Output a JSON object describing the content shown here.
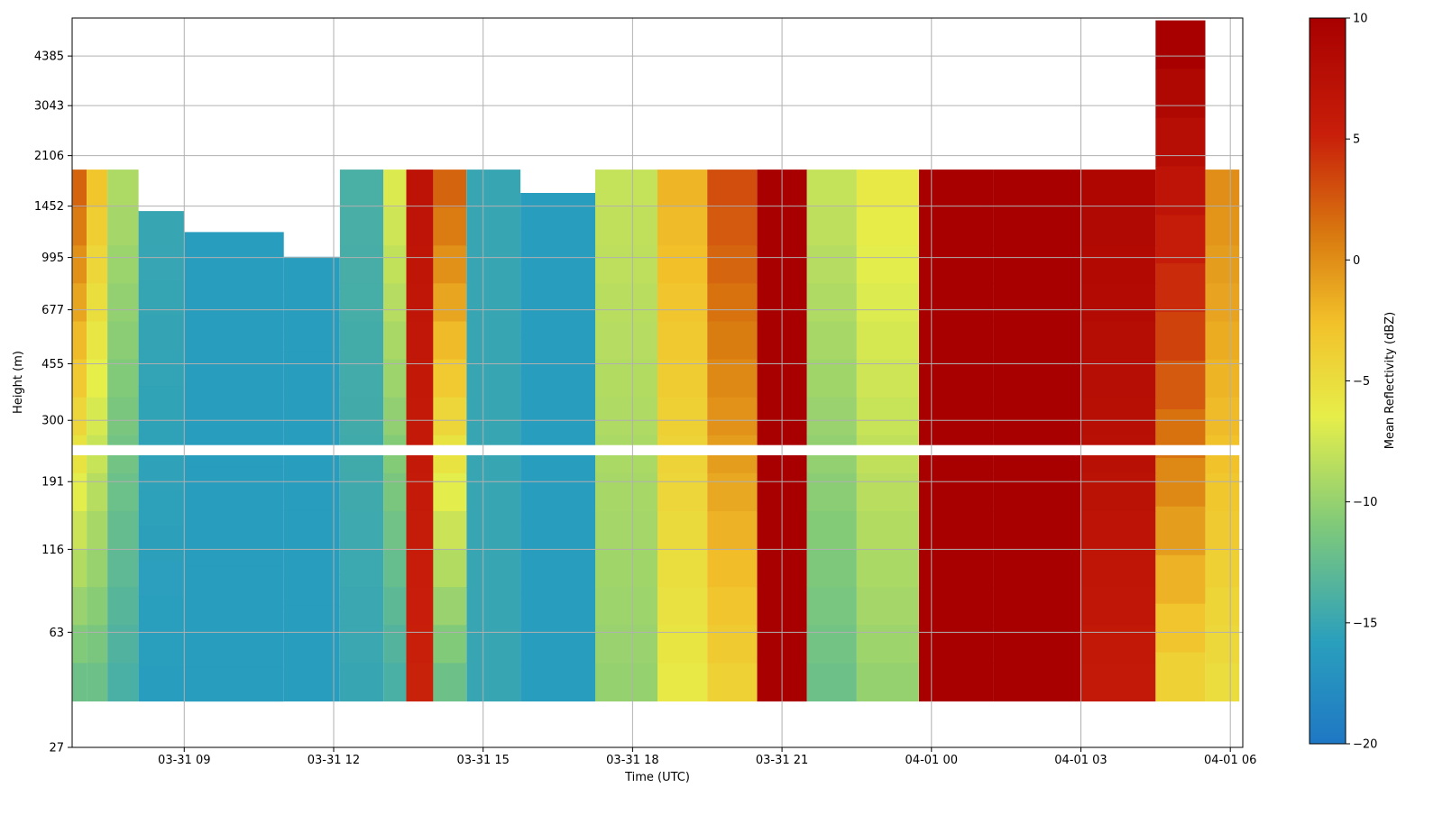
{
  "chart_data": {
    "type": "heatmap",
    "title": "",
    "xlabel": "Time (UTC)",
    "ylabel": "Height (m)",
    "x_range": [
      "2025-03-31T06:45",
      "2025-04-01T06:15"
    ],
    "xticks": [
      "03-31 09",
      "03-31 12",
      "03-31 15",
      "03-31 18",
      "03-31 21",
      "04-01 00",
      "04-01 03",
      "04-01 06"
    ],
    "y_scale": "log",
    "y_range": [
      27,
      5800
    ],
    "yticks": [
      "27",
      "63",
      "116",
      "191",
      "300",
      "455",
      "677",
      "995",
      "1452",
      "2106",
      "3043",
      "4385"
    ],
    "grid": true,
    "colorbar": {
      "label": "Mean Reflectivity (dBZ)",
      "range": [
        -20,
        10
      ],
      "ticks": [
        "−20",
        "−15",
        "−10",
        "−5",
        "0",
        "5",
        "10"
      ],
      "colormap": [
        "#1f77c4",
        "#2a9fbd",
        "#7fc97a",
        "#e6ee4a",
        "#f2c12a",
        "#d97a10",
        "#c81e0a",
        "#a80000"
      ]
    },
    "gap_band_m": [
      232,
      250
    ],
    "columns": [
      {
        "t": "2025-03-31T06:50",
        "top": 1900,
        "dbz_low": -12,
        "dbz_high": 2
      },
      {
        "t": "2025-03-31T07:15",
        "top": 1900,
        "dbz_low": -12,
        "dbz_high": -3
      },
      {
        "t": "2025-03-31T07:40",
        "top": 1900,
        "dbz_low": -14,
        "dbz_high": -9
      },
      {
        "t": "2025-03-31T08:30",
        "top": 1400,
        "dbz_low": -16,
        "dbz_high": -15
      },
      {
        "t": "2025-03-31T09:30",
        "top": 1200,
        "dbz_low": -16,
        "dbz_high": -16
      },
      {
        "t": "2025-03-31T10:30",
        "top": 1200,
        "dbz_low": -16,
        "dbz_high": -16
      },
      {
        "t": "2025-03-31T11:30",
        "top": 1000,
        "dbz_low": -16,
        "dbz_high": -16
      },
      {
        "t": "2025-03-31T12:45",
        "top": 1900,
        "dbz_low": -15,
        "dbz_high": -14
      },
      {
        "t": "2025-03-31T13:15",
        "top": 1900,
        "dbz_low": -14,
        "dbz_high": -7
      },
      {
        "t": "2025-03-31T13:40",
        "top": 1900,
        "dbz_low": 5,
        "dbz_high": 7
      },
      {
        "t": "2025-03-31T14:20",
        "top": 1900,
        "dbz_low": -12,
        "dbz_high": 2
      },
      {
        "t": "2025-03-31T15:00",
        "top": 1900,
        "dbz_low": -15,
        "dbz_high": -15
      },
      {
        "t": "2025-03-31T16:30",
        "top": 1600,
        "dbz_low": -16,
        "dbz_high": -16
      },
      {
        "t": "2025-03-31T18:00",
        "top": 1900,
        "dbz_low": -10,
        "dbz_high": -8
      },
      {
        "t": "2025-03-31T19:00",
        "top": 1900,
        "dbz_low": -6,
        "dbz_high": -2
      },
      {
        "t": "2025-03-31T20:00",
        "top": 1900,
        "dbz_low": -4,
        "dbz_high": 3
      },
      {
        "t": "2025-03-31T21:00",
        "top": 1900,
        "dbz_low": 10,
        "dbz_high": 10
      },
      {
        "t": "2025-03-31T22:00",
        "top": 1900,
        "dbz_low": -12,
        "dbz_high": -8
      },
      {
        "t": "2025-03-31T23:00",
        "top": 1900,
        "dbz_low": -10,
        "dbz_high": -6
      },
      {
        "t": "2025-04-01T00:30",
        "top": 1900,
        "dbz_low": 10,
        "dbz_high": 10
      },
      {
        "t": "2025-04-01T02:00",
        "top": 1900,
        "dbz_low": 10,
        "dbz_high": 10
      },
      {
        "t": "2025-04-01T04:00",
        "top": 1900,
        "dbz_low": 6,
        "dbz_high": 9
      },
      {
        "t": "2025-04-01T05:00",
        "top": 5700,
        "dbz_low": -4,
        "dbz_high": 10
      },
      {
        "t": "2025-04-01T06:00",
        "top": 1900,
        "dbz_low": -5,
        "dbz_high": 0
      }
    ]
  }
}
